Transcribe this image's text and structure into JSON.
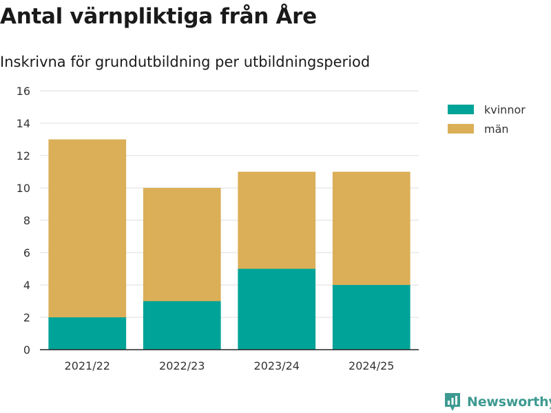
{
  "header": {
    "title": "Antal värnpliktiga från Åre",
    "subtitle": "Inskrivna för grundutbildning per utbildningsperiod"
  },
  "brand": {
    "name": "Newsworthy",
    "icon": "newsworthy-logo-icon",
    "color": "#3d9a91"
  },
  "colors": {
    "kvinnor": "#00a398",
    "man": "#dbaf58",
    "grid": "#dddddd",
    "axis": "#222222"
  },
  "chart_data": {
    "type": "bar",
    "stacked": true,
    "categories": [
      "2021/22",
      "2022/23",
      "2023/24",
      "2024/25"
    ],
    "series": [
      {
        "name": "kvinnor",
        "values": [
          2,
          3,
          5,
          4
        ]
      },
      {
        "name": "män",
        "values": [
          11,
          7,
          6,
          7
        ]
      }
    ],
    "ylim": [
      0,
      16
    ],
    "yticks": [
      0,
      2,
      4,
      6,
      8,
      10,
      12,
      14,
      16
    ],
    "grid": true,
    "legend": "right"
  }
}
